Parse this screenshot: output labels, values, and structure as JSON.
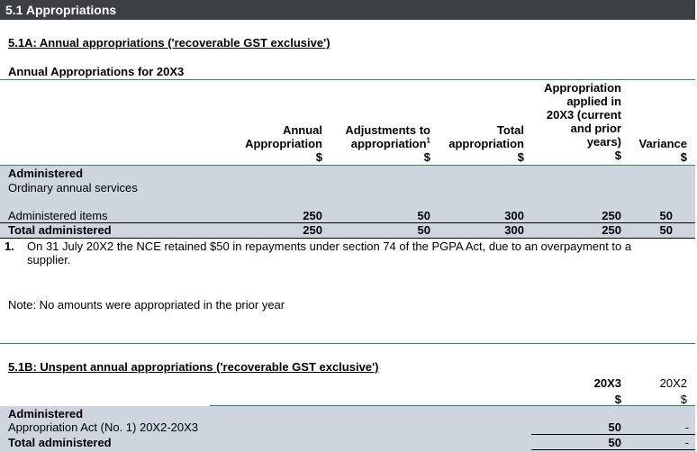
{
  "section": {
    "title": "5.1 Appropriations"
  },
  "part_a": {
    "subtitle": "5.1A: Annual appropriations ('recoverable GST exclusive')",
    "table_title": "Annual Appropriations for 20X3",
    "columns": [
      {
        "line1": "Annual",
        "line2": "Appropriation",
        "unit": "$"
      },
      {
        "line1": "Adjustments to",
        "line2": "appropriation",
        "sup": "1",
        "unit": "$"
      },
      {
        "line1": "Total",
        "line2": "appropriation",
        "unit": "$"
      },
      {
        "l1": "Appropriation",
        "l2": "applied in",
        "l3": "20X3 (current",
        "l4": "and prior",
        "l5": "years)",
        "unit": "$"
      },
      {
        "line1": "Variance",
        "unit": "$"
      }
    ],
    "group_label": "Administered",
    "group_sub": "Ordinary annual services",
    "row_items": {
      "label": "Administered items",
      "values": [
        "250",
        "50",
        "300",
        "250",
        "50"
      ]
    },
    "row_total": {
      "label": "Total administered",
      "values": [
        "250",
        "50",
        "300",
        "250",
        "50"
      ]
    },
    "footnote_num": "1.",
    "footnote_text_line1": "On 31 July 20X2 the NCE retained $50 in repayments under section 74 of the PGPA Act, due to an overpayment to a",
    "footnote_text_line2": "supplier.",
    "note": "Note: No amounts were appropriated in the prior year"
  },
  "part_b": {
    "subtitle": "5.1B: Unspent annual appropriations ('recoverable GST exclusive')",
    "col_current": {
      "year": "20X3",
      "unit": "$"
    },
    "col_prior": {
      "year": "20X2",
      "unit": "$"
    },
    "group_label": "Administered",
    "row_act": {
      "label": "Appropriation Act (No. 1) 20X2-20X3",
      "current": "50",
      "prior": "-"
    },
    "row_total": {
      "label": "Total administered",
      "current": "50",
      "prior": "-"
    }
  }
}
